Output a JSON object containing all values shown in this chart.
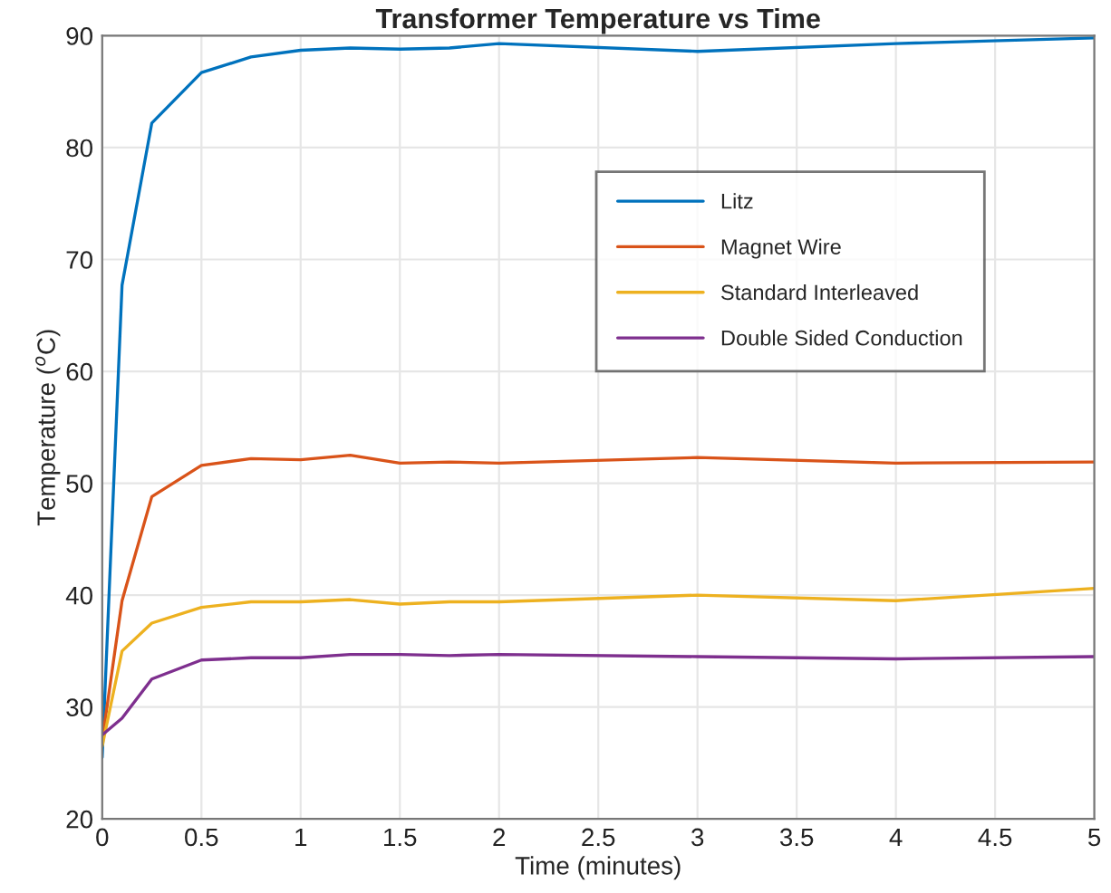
{
  "chart_data": {
    "type": "line",
    "title": "Transformer Temperature vs Time",
    "xlabel": "Time (minutes)",
    "ylabel": "Temperature ($^{o}$C)",
    "x": [
      0,
      0.1,
      0.25,
      0.5,
      0.75,
      1,
      1.25,
      1.5,
      1.75,
      2,
      3,
      4,
      5
    ],
    "series": [
      {
        "name": "Litz",
        "color": "#0072bd",
        "values": [
          25.5,
          67.7,
          82.2,
          86.7,
          88.1,
          88.7,
          88.9,
          88.8,
          88.9,
          89.3,
          88.6,
          89.3,
          89.8
        ]
      },
      {
        "name": "Magnet Wire",
        "color": "#d95319",
        "values": [
          27,
          39.5,
          48.8,
          51.6,
          52.2,
          52.1,
          52.5,
          51.8,
          51.9,
          51.8,
          52.3,
          51.8,
          51.9
        ]
      },
      {
        "name": "Standard Interleaved",
        "color": "#edb120",
        "values": [
          26.5,
          35,
          37.5,
          38.9,
          39.4,
          39.4,
          39.6,
          39.2,
          39.4,
          39.4,
          40,
          39.5,
          40.6
        ]
      },
      {
        "name": "Double Sided Conduction",
        "color": "#7e2f8e",
        "values": [
          27.5,
          29,
          32.5,
          34.2,
          34.4,
          34.4,
          34.7,
          34.7,
          34.6,
          34.7,
          34.5,
          34.3,
          34.5
        ]
      }
    ],
    "xlim": [
      0,
      5
    ],
    "xticks": [
      0,
      0.5,
      1,
      1.5,
      2,
      2.5,
      3,
      3.5,
      4,
      4.5,
      5
    ],
    "ylim": [
      20,
      90
    ],
    "yticks": [
      20,
      30,
      40,
      50,
      60,
      70,
      80,
      90
    ],
    "grid": true,
    "legend": "top right"
  }
}
